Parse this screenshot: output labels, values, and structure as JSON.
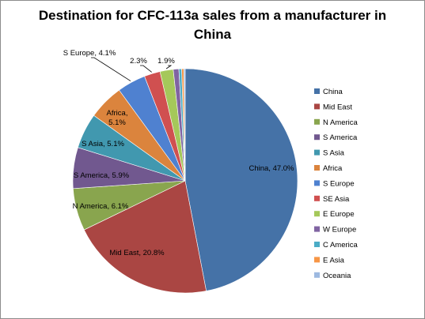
{
  "chart_data": {
    "type": "pie",
    "title": "Destination for CFC-113a sales from a manufacturer in China",
    "legend_position": "right",
    "categories": [
      "China",
      "Mid East",
      "N America",
      "S America",
      "S Asia",
      "Africa",
      "S Europe",
      "SE Asia",
      "E Europe",
      "W Europe",
      "C America",
      "E Asia",
      "Oceania"
    ],
    "values": [
      47.0,
      20.8,
      6.1,
      5.9,
      5.1,
      5.1,
      4.1,
      2.3,
      1.9,
      0.8,
      0.4,
      0.3,
      0.2
    ],
    "colors": [
      "#4572A7",
      "#AA4643",
      "#89A54E",
      "#71588F",
      "#4198AF",
      "#DB843D",
      "#4F81D0",
      "#D05050",
      "#A5C85A",
      "#8064A2",
      "#4BACC6",
      "#F79646",
      "#9DB9E0"
    ],
    "data_labels": [
      "China, 47.0%",
      "Mid East, 20.8%",
      "N America, 6.1%",
      "S America, 5.9%",
      "S Asia, 5.1%",
      "Africa,|5.1%",
      "S Europe, 4.1%",
      "2.3%",
      "1.9%",
      "",
      "",
      "",
      ""
    ]
  }
}
